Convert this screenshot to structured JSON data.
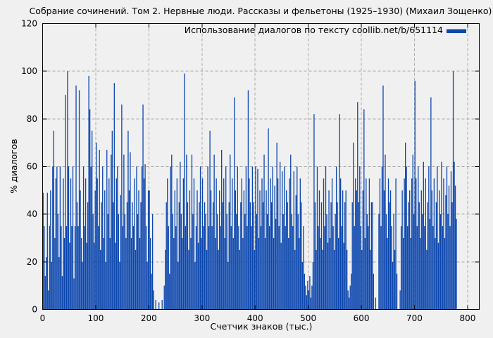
{
  "colors": {
    "background": "#f0f0f0",
    "bar": "#0b46ad",
    "grid": "#a9a9a9",
    "axis": "#000000"
  },
  "chart_data": {
    "type": "bar",
    "style": "impulses",
    "title": "Собрание сочинений. Том 2. Нервные люди. Рассказы и фельетоны (1925–1930) (Михаил Зощенко)",
    "legend": "Использование диалогов по тексту coollib.net/b/651114",
    "legend_position": "top-right-inside",
    "xlabel": "Счетчик знаков (тыс.)",
    "ylabel": "% диалогов",
    "xlim": [
      0,
      822
    ],
    "ylim": [
      0,
      120
    ],
    "xticks": [
      0,
      100,
      200,
      300,
      400,
      500,
      600,
      700,
      800
    ],
    "yticks": [
      0,
      20,
      40,
      60,
      80,
      100,
      120
    ],
    "grid": true,
    "grid_style": "dashed",
    "x_start": 1,
    "x_step": 2,
    "values": [
      49,
      35,
      14,
      22,
      49,
      8,
      35,
      50,
      20,
      60,
      75,
      30,
      55,
      60,
      40,
      22,
      60,
      35,
      14,
      55,
      30,
      90,
      35,
      100,
      60,
      28,
      55,
      35,
      60,
      13,
      35,
      94,
      45,
      35,
      92,
      50,
      30,
      20,
      60,
      35,
      55,
      28,
      45,
      98,
      84,
      60,
      75,
      40,
      28,
      50,
      70,
      55,
      35,
      67,
      25,
      45,
      60,
      30,
      50,
      20,
      67,
      40,
      55,
      30,
      65,
      75,
      45,
      95,
      28,
      55,
      60,
      40,
      20,
      48,
      86,
      35,
      65,
      40,
      30,
      45,
      75,
      50,
      66,
      30,
      45,
      35,
      55,
      25,
      60,
      40,
      50,
      30,
      45,
      60,
      86,
      55,
      61,
      35,
      20,
      50,
      50,
      30,
      15,
      40,
      8,
      0,
      4,
      0,
      0,
      3,
      0,
      0,
      4,
      0,
      10,
      25,
      45,
      55,
      35,
      15,
      60,
      65,
      40,
      30,
      50,
      35,
      55,
      20,
      45,
      62,
      40,
      30,
      55,
      99,
      35,
      65,
      45,
      25,
      50,
      30,
      65,
      40,
      55,
      20,
      35,
      50,
      28,
      45,
      60,
      30,
      55,
      35,
      45,
      40,
      25,
      60,
      35,
      75,
      50,
      35,
      45,
      65,
      30,
      55,
      40,
      25,
      50,
      35,
      67,
      45,
      55,
      30,
      60,
      40,
      20,
      45,
      65,
      35,
      55,
      30,
      89,
      50,
      40,
      60,
      35,
      25,
      45,
      55,
      30,
      50,
      40,
      60,
      35,
      92,
      55,
      45,
      35,
      60,
      45,
      25,
      60,
      40,
      59,
      30,
      50,
      35,
      55,
      45,
      65,
      30,
      50,
      40,
      76,
      35,
      55,
      45,
      60,
      30,
      52,
      38,
      70,
      55,
      35,
      62,
      28,
      58,
      40,
      60,
      35,
      50,
      45,
      30,
      55,
      65,
      40,
      35,
      58,
      25,
      48,
      60,
      40,
      30,
      55,
      45,
      20,
      35,
      15,
      10,
      6,
      12,
      8,
      14,
      5,
      10,
      20,
      82,
      45,
      25,
      60,
      35,
      50,
      30,
      45,
      25,
      55,
      35,
      60,
      40,
      28,
      50,
      30,
      45,
      55,
      35,
      25,
      40,
      60,
      45,
      30,
      82,
      55,
      35,
      50,
      28,
      45,
      50,
      25,
      8,
      5,
      10,
      15,
      45,
      70,
      35,
      55,
      50,
      87,
      45,
      60,
      35,
      25,
      50,
      84,
      30,
      55,
      40,
      35,
      55,
      25,
      45,
      45,
      15,
      0,
      5,
      0,
      0,
      40,
      55,
      35,
      60,
      94,
      50,
      65,
      40,
      30,
      55,
      45,
      50,
      35,
      20,
      40,
      25,
      55,
      15,
      0,
      0,
      8,
      35,
      50,
      30,
      55,
      70,
      60,
      35,
      45,
      50,
      30,
      55,
      65,
      40,
      96,
      55,
      35,
      60,
      45,
      30,
      50,
      40,
      62,
      35,
      55,
      25,
      45,
      60,
      38,
      89,
      50,
      35,
      55,
      30,
      45,
      60,
      28,
      50,
      40,
      62,
      35,
      55,
      30,
      48,
      60,
      40,
      52,
      35,
      58,
      45,
      100,
      62,
      52,
      38
    ]
  }
}
